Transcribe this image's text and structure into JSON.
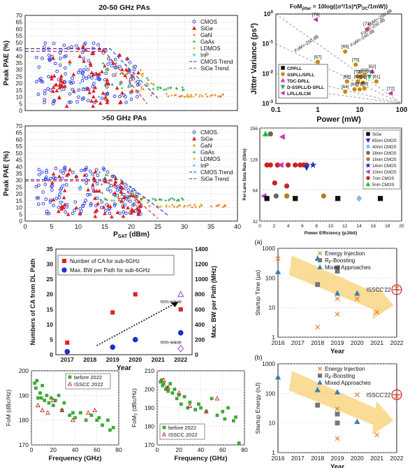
{
  "chart_data": [
    {
      "id": "pa_2050",
      "type": "scatter",
      "title": "20-50 GHz PAs",
      "xlabel": "",
      "ylabel": "Peak PAE (%)",
      "xlim": [
        0,
        40
      ],
      "ylim": [
        0,
        70
      ],
      "yticks": [
        0,
        5,
        10,
        15,
        20,
        25,
        30,
        35,
        40,
        45,
        50,
        55,
        60,
        65,
        70
      ],
      "legend": [
        "CMOS",
        "SiGe",
        "GaN",
        "GaAs",
        "LDMOS",
        "InP",
        "CMOS Trend",
        "SiGe Trend"
      ],
      "legend_colors": [
        "#2233dd",
        "#dd2222",
        "#ee7711",
        "#22aa44",
        "#ccbb11",
        "#22bbee",
        "#2233dd",
        "#dd2222"
      ],
      "trend": [
        {
          "name": "CMOS Trend",
          "points": [
            [
              0,
              45.5
            ],
            [
              16,
              45.5
            ],
            [
              25,
              9
            ]
          ]
        },
        {
          "name": "SiGe Trend",
          "points": [
            [
              0,
              43.5
            ],
            [
              15,
              43.5
            ],
            [
              23,
              5
            ]
          ]
        }
      ]
    },
    {
      "id": "pa_50",
      "type": "scatter",
      "title": ">50 GHz PAs",
      "xlabel": "P_SAT (dBm)",
      "ylabel": "Peak PAE (%)",
      "xlim": [
        0,
        40
      ],
      "ylim": [
        0,
        70
      ],
      "xticks": [
        0,
        5,
        10,
        15,
        20,
        25,
        30,
        35,
        40
      ],
      "yticks": [
        0,
        5,
        10,
        15,
        20,
        25,
        30,
        35,
        40,
        45,
        50,
        55,
        60,
        65,
        70
      ],
      "legend": [
        "CMOS",
        "SiGe",
        "GaN",
        "GaAs",
        "LDMOS",
        "InP",
        "CMOS Trend",
        "SiGe Trend"
      ],
      "legend_colors": [
        "#2233dd",
        "#dd2222",
        "#ee7711",
        "#22aa44",
        "#ccbb11",
        "#22bbee",
        "#2233dd",
        "#dd2222"
      ],
      "trend": [
        {
          "name": "CMOS Trend",
          "points": [
            [
              0,
              30.5
            ],
            [
              18,
              30.5
            ],
            [
              27,
              4
            ]
          ]
        },
        {
          "name": "SiGe Trend",
          "points": [
            [
              0,
              29.5
            ],
            [
              17,
              29.5
            ],
            [
              25,
              2
            ]
          ]
        }
      ]
    },
    {
      "id": "jitter",
      "type": "scatter",
      "title": "FoM_jitter = 10log((σ²/1s)*(P_DC/1mW))",
      "xlabel": "Power (mW)",
      "ylabel": "Jitter Variance (ps²)",
      "xscale": "log",
      "yscale": "log",
      "xlim": [
        0.1,
        100
      ],
      "ylim": [
        0.001,
        1
      ],
      "xtick_labels": [
        "0.1",
        "1",
        "10",
        "100"
      ],
      "ytick_labels": [
        "10^-3",
        "10^-2",
        "10^-1",
        "10^0"
      ],
      "fom_lines": [
        "FoM=-250 dB",
        "FoM=-240 dB",
        "FoM=-250 dB",
        "FoM=-260 dB"
      ],
      "legend": [
        "CPPLL",
        "SSPLL/SPLL",
        "TDC-DPLL",
        "D-SSPLL/D-SPLL",
        "LPLL/ILCM"
      ],
      "legend_colors": [
        "#111111",
        "#cc8800",
        "#dd33cc",
        "#22aa66",
        "#cc3399"
      ],
      "points": [
        {
          "label": "[79]",
          "x": 0.9,
          "y": 0.65,
          "group": "LPLL/ILCM"
        },
        {
          "label": "[73]",
          "x": 15,
          "y": 0.32,
          "group": "LPLL/ILCM"
        },
        {
          "label": "[69]",
          "x": 4.5,
          "y": 0.055,
          "group": "SSPLL/SPLL"
        },
        {
          "label": "[67]",
          "x": 1.0,
          "y": 0.025,
          "group": "SSPLL/SPLL"
        },
        {
          "label": "[75]",
          "x": 8,
          "y": 0.02,
          "group": "SSPLL/SPLL"
        },
        {
          "label": "[62]",
          "x": 20,
          "y": 0.012,
          "group": "TDC-DPLL"
        },
        {
          "label": "[71]",
          "x": 9,
          "y": 0.008,
          "group": "SSPLL/SPLL"
        },
        {
          "label": "[65]",
          "x": 11,
          "y": 0.008,
          "group": "SSPLL/SPLL"
        },
        {
          "label": "[70]",
          "x": 13,
          "y": 0.009,
          "group": "SSPLL/SPLL"
        },
        {
          "label": "[76]",
          "x": 17,
          "y": 0.008,
          "group": "D-SSPLL/D-SPLL"
        },
        {
          "label": "[68]",
          "x": 5,
          "y": 0.0055,
          "group": "SSPLL/SPLL"
        },
        {
          "label": "[63]",
          "x": 9,
          "y": 0.0055,
          "group": "SSPLL/SPLL"
        },
        {
          "label": "[74]",
          "x": 12,
          "y": 0.005,
          "group": "SSPLL/SPLL"
        },
        {
          "label": "[61]",
          "x": 25,
          "y": 0.0055,
          "group": "SSPLL/SPLL"
        },
        {
          "label": "[64]",
          "x": 4.5,
          "y": 0.0025,
          "group": "SSPLL/SPLL"
        },
        {
          "label": "[66]",
          "x": 7.5,
          "y": 0.003,
          "group": "SSPLL/SPLL"
        },
        {
          "label": "[77]",
          "x": 10,
          "y": 0.003,
          "group": "SSPLL/SPLL"
        },
        {
          "label": "[78]",
          "x": 13,
          "y": 0.0032,
          "group": "SSPLL/SPLL"
        },
        {
          "label": "[72]",
          "x": 55,
          "y": 0.0022,
          "group": "LPLL/ILCM"
        }
      ]
    },
    {
      "id": "lane_rate",
      "type": "scatter",
      "title": "",
      "xlabel": "Power Efficiency (pJ/bit)",
      "ylabel": "Per-Lane Data Rate (Gb/s)",
      "yscale": "log",
      "xlim": [
        0,
        20
      ],
      "ylim": [
        32,
        256
      ],
      "xticks": [
        0,
        2,
        4,
        6,
        8,
        10,
        12,
        14,
        16,
        18,
        20
      ],
      "ytick_labels": [
        "32",
        "64",
        "128",
        "256"
      ],
      "legend": [
        "SiGe",
        "65nm CMOS",
        "40nm CMOS",
        "28nm CMOS",
        "16nm CMOS",
        "14nm CMOS",
        "10nm CMOS",
        "7nm CMOS",
        "5nm CMOS"
      ],
      "legend_colors": [
        "#111111",
        "#1133cc",
        "#88bbee",
        "#666666",
        "#bb7722",
        "#1133cc",
        "#cc33cc",
        "#cc2222",
        "#22bb33"
      ],
      "points": [
        {
          "x": 1.5,
          "y": 224,
          "group": "28nm CMOS"
        },
        {
          "x": 0.8,
          "y": 224,
          "group": "5nm CMOS"
        },
        {
          "x": 3.2,
          "y": 210,
          "group": "10nm CMOS"
        },
        {
          "x": 1.0,
          "y": 112,
          "group": "7nm CMOS"
        },
        {
          "x": 1.5,
          "y": 112,
          "group": "7nm CMOS"
        },
        {
          "x": 2.5,
          "y": 112,
          "group": "7nm CMOS"
        },
        {
          "x": 3.0,
          "y": 112,
          "group": "10nm CMOS"
        },
        {
          "x": 4.0,
          "y": 112,
          "group": "7nm CMOS"
        },
        {
          "x": 5.0,
          "y": 112,
          "group": "7nm CMOS"
        },
        {
          "x": 5.7,
          "y": 112,
          "group": "7nm CMOS"
        },
        {
          "x": 6.2,
          "y": 112,
          "group": "7nm CMOS"
        },
        {
          "x": 6.6,
          "y": 112,
          "group": "7nm CMOS"
        },
        {
          "x": 7.5,
          "y": 112,
          "group": "14nm CMOS"
        },
        {
          "x": 2.1,
          "y": 75,
          "group": "7nm CMOS"
        },
        {
          "x": 3.8,
          "y": 70,
          "group": "7nm CMOS"
        },
        {
          "x": 6.6,
          "y": 106,
          "group": "65nm CMOS"
        },
        {
          "x": 0.6,
          "y": 56,
          "group": "10nm CMOS"
        },
        {
          "x": 1.0,
          "y": 53,
          "group": "SiGe"
        },
        {
          "x": 2.3,
          "y": 56,
          "group": "28nm CMOS"
        },
        {
          "x": 3.8,
          "y": 56,
          "group": "16nm CMOS"
        },
        {
          "x": 5.0,
          "y": 53,
          "group": "SiGe"
        },
        {
          "x": 9.0,
          "y": 56,
          "group": "16nm CMOS"
        },
        {
          "x": 11.0,
          "y": 53,
          "group": "SiGe"
        },
        {
          "x": 14.0,
          "y": 53,
          "group": "40nm CMOS"
        },
        {
          "x": 17.0,
          "y": 53,
          "group": "SiGe"
        }
      ]
    },
    {
      "id": "ca_bw",
      "type": "scatter",
      "title": "",
      "xlabel": "Year",
      "ylabel": "Numbers of CA from DL Path",
      "y2label": "Max. BW per Path (MHz)",
      "xlim": [
        2016.5,
        2022.5
      ],
      "ylim": [
        0,
        35
      ],
      "y2lim": [
        0,
        1400
      ],
      "xticks": [
        2017,
        2018,
        2019,
        2020,
        2021,
        2022
      ],
      "yticks": [
        0,
        5,
        10,
        15,
        20,
        25,
        30,
        35
      ],
      "y2ticks": [
        0,
        200,
        400,
        600,
        800,
        1000,
        1200,
        1400
      ],
      "series": [
        {
          "name": "Number of CA for sub-6GHz",
          "axis": "left",
          "x": [
            2017,
            2019,
            2020,
            2022
          ],
          "values": [
            4,
            14,
            20,
            15
          ]
        },
        {
          "name": "Max. BW per Path for sub-6GHz",
          "axis": "right",
          "x": [
            2017,
            2019,
            2020,
            2022
          ],
          "values": [
            40,
            100,
            200,
            290
          ]
        }
      ],
      "mmwave": [
        {
          "label": "mm-wave",
          "x": 2022,
          "y2": 800
        },
        {
          "label": "mm-wave",
          "x": 2022,
          "y2": 80
        }
      ]
    },
    {
      "id": "startup_time",
      "type": "scatter",
      "panel_label": "(a)",
      "title": "",
      "xlabel": "Year",
      "ylabel": "Startup Time (µs)",
      "yscale": "log",
      "xlim": [
        2016,
        2022
      ],
      "ylim": [
        1,
        1000
      ],
      "xticks": [
        2016,
        2017,
        2018,
        2019,
        2020,
        2021,
        2022
      ],
      "ytick_labels": [
        "1",
        "10",
        "100",
        "1000"
      ],
      "legend": [
        "Energy Injection",
        "R_F-Boosting",
        "Mixed Approaches"
      ],
      "annotation": "ISSCC'22",
      "points": [
        {
          "x": 2016,
          "y": 450,
          "group": "Energy Injection"
        },
        {
          "x": 2018,
          "y": 2.2,
          "group": "Energy Injection"
        },
        {
          "x": 2019,
          "y": 6,
          "group": "Energy Injection"
        },
        {
          "x": 2019,
          "y": 20,
          "group": "Energy Injection"
        },
        {
          "x": 2020,
          "y": 20,
          "group": "Energy Injection"
        },
        {
          "x": 2021,
          "y": 7,
          "group": "Energy Injection"
        },
        {
          "x": 2022,
          "y": 45,
          "group": "Energy Injection"
        },
        {
          "x": 2018,
          "y": 60,
          "group": "R_F-Boosting"
        },
        {
          "x": 2019,
          "y": 170,
          "group": "R_F-Boosting"
        },
        {
          "x": 2019,
          "y": 220,
          "group": "R_F-Boosting"
        },
        {
          "x": 2016,
          "y": 160,
          "group": "Mixed Approaches"
        },
        {
          "x": 2018,
          "y": 450,
          "group": "Mixed Approaches"
        },
        {
          "x": 2019,
          "y": 30,
          "group": "Mixed Approaches"
        },
        {
          "x": 2020,
          "y": 30,
          "group": "Mixed Approaches"
        }
      ]
    },
    {
      "id": "startup_energy",
      "type": "scatter",
      "panel_label": "(b)",
      "title": "",
      "xlabel": "Year",
      "ylabel": "Startup Energy (nJ)",
      "yscale": "log",
      "xlim": [
        2016,
        2022
      ],
      "ylim": [
        1,
        1000
      ],
      "xticks": [
        2016,
        2017,
        2018,
        2019,
        2020,
        2021,
        2022
      ],
      "ytick_labels": [
        "1",
        "10",
        "100",
        "1000"
      ],
      "legend": [
        "Energy Injection",
        "R_F-Boosting",
        "Mixed Approaches"
      ],
      "annotation": "ISSCC'22",
      "points": [
        {
          "x": 2018,
          "y": 40,
          "group": "Energy Injection"
        },
        {
          "x": 2019,
          "y": 30,
          "group": "Energy Injection"
        },
        {
          "x": 2019,
          "y": 3,
          "group": "Energy Injection"
        },
        {
          "x": 2020,
          "y": 90,
          "group": "Energy Injection"
        },
        {
          "x": 2021,
          "y": 4,
          "group": "Energy Injection"
        },
        {
          "x": 2022,
          "y": 80,
          "group": "Energy Injection"
        },
        {
          "x": 2018,
          "y": 40,
          "group": "R_F-Boosting"
        },
        {
          "x": 2019,
          "y": 10,
          "group": "R_F-Boosting"
        },
        {
          "x": 2019,
          "y": 20,
          "group": "R_F-Boosting"
        },
        {
          "x": 2016,
          "y": 350,
          "group": "Mixed Approaches"
        },
        {
          "x": 2018,
          "y": 130,
          "group": "Mixed Approaches"
        },
        {
          "x": 2019,
          "y": 110,
          "group": "Mixed Approaches"
        },
        {
          "x": 2020,
          "y": 11,
          "group": "Mixed Approaches"
        }
      ]
    },
    {
      "id": "fom1",
      "type": "scatter",
      "title": "",
      "xlabel": "Frequency (GHz)",
      "ylabel": "FoM (dBc/Hz)",
      "xlim": [
        0,
        80
      ],
      "ylim": [
        170,
        200
      ],
      "xticks": [
        0,
        20,
        40,
        60,
        80
      ],
      "yticks": [
        170,
        180,
        190,
        200
      ],
      "legend": [
        "before 2022",
        "ISSCC 2022"
      ],
      "series": [
        {
          "name": "before 2022",
          "x": [
            3,
            4,
            5,
            6,
            8,
            9,
            10,
            12,
            14,
            16,
            18,
            20,
            22,
            25,
            28,
            30,
            35,
            38,
            40,
            45,
            50,
            55,
            60,
            62,
            65,
            70,
            72,
            75
          ],
          "values": [
            195,
            193,
            196,
            189,
            191,
            189,
            194,
            188,
            190,
            187,
            189,
            186,
            188,
            190,
            184,
            187,
            182,
            183,
            181,
            183,
            180,
            182,
            180,
            181,
            178,
            180,
            176,
            177
          ]
        },
        {
          "name": "ISSCC 2022",
          "x": [
            6,
            10,
            15,
            20,
            28,
            38,
            52,
            58
          ],
          "values": [
            186,
            184,
            183,
            188,
            184,
            180,
            183,
            184
          ]
        }
      ]
    },
    {
      "id": "fom2",
      "type": "scatter",
      "title": "",
      "xlabel": "Frequency (GHz)",
      "ylabel": "FoM_T (dBc/Hz)",
      "xlim": [
        0,
        80
      ],
      "ylim": [
        170,
        210
      ],
      "xticks": [
        0,
        20,
        40,
        60,
        80
      ],
      "yticks": [
        170,
        180,
        190,
        200,
        210
      ],
      "legend": [
        "before 2022",
        "ISSCC 2022"
      ],
      "series": [
        {
          "name": "before 2022",
          "x": [
            3,
            4,
            5,
            6,
            8,
            9,
            10,
            12,
            14,
            16,
            18,
            20,
            22,
            25,
            28,
            30,
            35,
            38,
            40,
            45,
            50,
            55,
            60,
            62,
            65,
            70,
            72,
            75
          ],
          "values": [
            204,
            205,
            202,
            203,
            200,
            201,
            199,
            203,
            198,
            200,
            195,
            197,
            192,
            196,
            190,
            193,
            189,
            192,
            190,
            188,
            195,
            186,
            188,
            184,
            190,
            183,
            185,
            171
          ]
        },
        {
          "name": "ISSCC 2022",
          "x": [
            6,
            10,
            20,
            30,
            45,
            55
          ],
          "values": [
            205,
            201,
            198,
            191,
            188,
            195
          ]
        }
      ]
    }
  ],
  "labels": {
    "pa1_title": "20-50 GHz PAs",
    "pa2_title": ">50 GHz PAs",
    "jitter_title": "FoM_jitter = 10log((σ²/1s)*(P_DC/1mW))",
    "panel_a": "(a)",
    "panel_b": "(b)"
  },
  "colors": {
    "cmos": "#2233dd",
    "sige": "#dd2222",
    "gan": "#ee7711",
    "gaas": "#22aa44",
    "ldmos": "#ccbb11",
    "inp": "#22bbee",
    "arrow": "#f5c040",
    "annotate": "#dd2222"
  }
}
